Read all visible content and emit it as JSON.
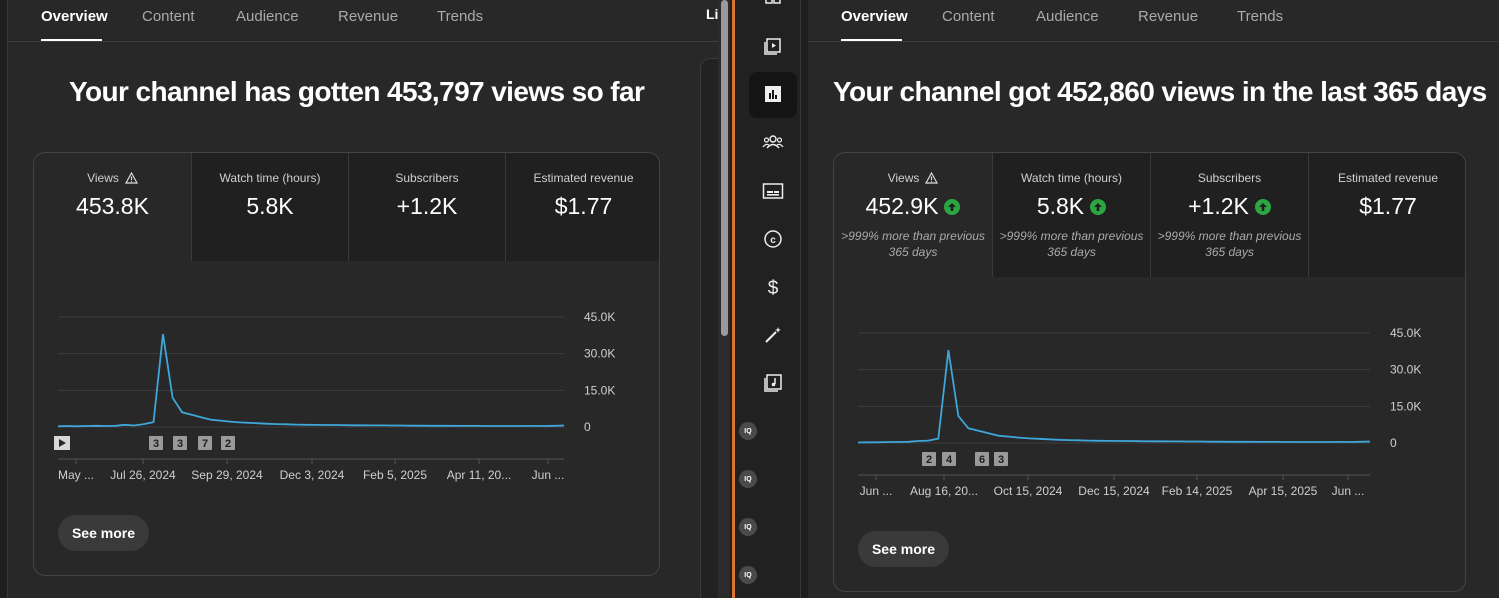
{
  "tabs": [
    "Overview",
    "Content",
    "Audience",
    "Revenue",
    "Trends"
  ],
  "left": {
    "headline": "Your channel has gotten 453,797 views so far",
    "metrics": [
      {
        "label": "Views",
        "value": "453.8K",
        "warning": true
      },
      {
        "label": "Watch time (hours)",
        "value": "5.8K"
      },
      {
        "label": "Subscribers",
        "value": "+1.2K"
      },
      {
        "label": "Estimated revenue",
        "value": "$1.77"
      }
    ],
    "y_ticks": [
      "45.0K",
      "30.0K",
      "15.0K",
      "0"
    ],
    "x_ticks": [
      "May ...",
      "Jul 26, 2024",
      "Sep 29, 2024",
      "Dec 3, 2024",
      "Feb 5, 2025",
      "Apr 11, 20...",
      "Jun ..."
    ],
    "markers": [
      "3",
      "3",
      "7",
      "2"
    ],
    "see_more": "See more",
    "peek_text": "Li"
  },
  "right": {
    "headline": "Your channel got 452,860 views in the last 365 days",
    "metrics": [
      {
        "label": "Views",
        "value": "452.9K",
        "warning": true,
        "sub": ">999% more than previous 365 days"
      },
      {
        "label": "Watch time (hours)",
        "value": "5.8K",
        "sub": ">999% more than previous 365 days"
      },
      {
        "label": "Subscribers",
        "value": "+1.2K",
        "sub": ">999% more than previous 365 days"
      },
      {
        "label": "Estimated revenue",
        "value": "$1.77"
      }
    ],
    "y_ticks": [
      "45.0K",
      "30.0K",
      "15.0K",
      "0"
    ],
    "x_ticks": [
      "Jun ...",
      "Aug 16, 20...",
      "Oct 15, 2024",
      "Dec 15, 2024",
      "Feb 14, 2025",
      "Apr 15, 2025",
      "Jun ..."
    ],
    "markers": [
      "2",
      "4",
      "6",
      "3"
    ],
    "see_more": "See more"
  },
  "sidebar": {
    "icons": [
      "dashboard-icon",
      "content-icon",
      "analytics-icon",
      "community-icon",
      "subtitles-icon",
      "copyright-icon",
      "earn-icon",
      "customization-icon",
      "audio-library-icon"
    ],
    "circle_labels": [
      "IQ",
      "IQ",
      "IQ",
      "IQ"
    ]
  },
  "colors": {
    "line": "#3ea6d8",
    "accent_up": "#2ba640",
    "divider": "#d8742d"
  },
  "chart_data": [
    {
      "type": "line",
      "title": "",
      "ylim": [
        0,
        45000
      ],
      "x_tick_labels": [
        "May ...",
        "Jul 26, 2024",
        "Sep 29, 2024",
        "Dec 3, 2024",
        "Feb 5, 2025",
        "Apr 11, 20...",
        "Jun ..."
      ],
      "series": [
        {
          "values": [
            300,
            400,
            300,
            400,
            500,
            400,
            500,
            900,
            600,
            1200,
            2000,
            38000,
            12000,
            6000,
            5000,
            4000,
            3000,
            2600,
            2200,
            1900,
            1700,
            1500,
            1300,
            1200,
            1100,
            1000,
            900,
            850,
            800,
            800,
            750,
            700,
            700,
            650,
            650,
            600,
            600,
            550,
            550,
            500,
            500,
            500,
            450,
            450,
            450,
            400,
            400,
            400,
            400,
            400,
            450,
            400,
            500,
            600
          ]
        }
      ]
    },
    {
      "type": "line",
      "title": "",
      "ylim": [
        0,
        45000
      ],
      "x_tick_labels": [
        "Jun ...",
        "Aug 16, 20...",
        "Oct 15, 2024",
        "Dec 15, 2024",
        "Feb 14, 2025",
        "Apr 15, 2025",
        "Jun ..."
      ],
      "series": [
        {
          "values": [
            200,
            300,
            300,
            400,
            400,
            500,
            800,
            1000,
            1800,
            38000,
            11000,
            6000,
            5000,
            4000,
            3000,
            2600,
            2200,
            1900,
            1700,
            1500,
            1300,
            1200,
            1100,
            1000,
            900,
            850,
            800,
            800,
            750,
            700,
            700,
            650,
            650,
            600,
            600,
            550,
            550,
            500,
            500,
            500,
            450,
            450,
            450,
            400,
            400,
            400,
            400,
            400,
            450,
            400,
            500,
            600
          ]
        }
      ]
    }
  ]
}
